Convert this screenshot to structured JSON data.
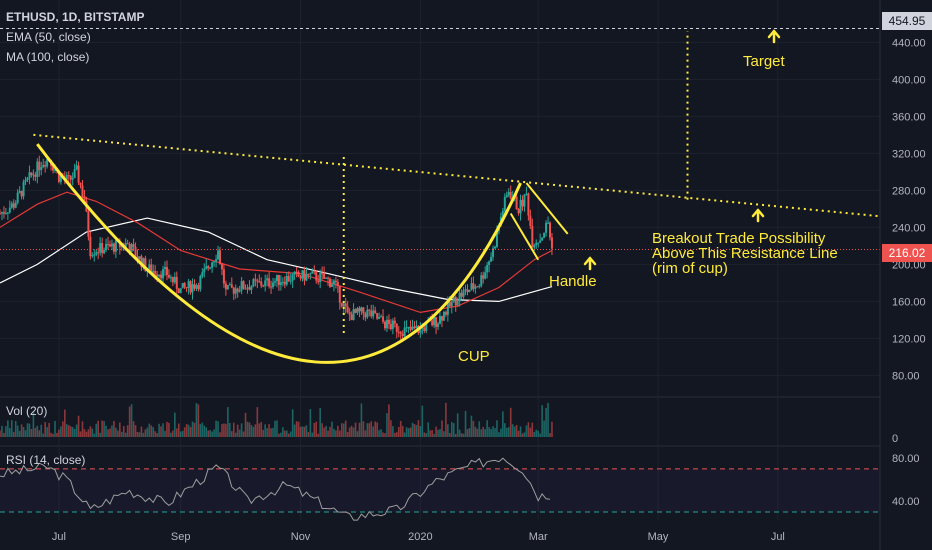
{
  "header": {
    "symbol_line": "ETHUSD, 1D, BITSTAMP",
    "ema_label": "EMA (50, close)",
    "ma_label": "MA (100, close)"
  },
  "volume_pane": {
    "label": "Vol (20)",
    "tick": "0"
  },
  "rsi_pane": {
    "label": "RSI (14, close)",
    "ticks": [
      "80.00",
      "40.00"
    ],
    "upper_band": 70,
    "lower_band": 30
  },
  "price_tags": {
    "top_level": "454.95",
    "last_price": "216.02"
  },
  "annotations": {
    "target": "Target",
    "breakout_line1": "Breakout Trade Possibility",
    "breakout_line2": "Above This Resistance Line",
    "breakout_line3": "(rim of cup)",
    "handle": "Handle",
    "cup": "CUP"
  },
  "colors": {
    "background": "#131722",
    "up_candle": "#26a69a",
    "down_candle": "#ef5350",
    "ema": "#e53935",
    "ma": "#ffffff",
    "annotation": "#ffeb3b",
    "price_line": "#ef5350"
  },
  "chart_data": {
    "type": "candlestick",
    "x_ticks": [
      "Jul",
      "Sep",
      "Nov",
      "2020",
      "Mar",
      "May",
      "Jul"
    ],
    "y_ticks": [
      "440.00",
      "400.00",
      "360.00",
      "320.00",
      "280.00",
      "240.00",
      "200.00",
      "160.00",
      "120.00",
      "80.00"
    ],
    "ylim": [
      62,
      462
    ],
    "last_price": 216.02,
    "target_level": 454.95,
    "price_path": [
      [
        "2019-06-01",
        255
      ],
      [
        "2019-06-08",
        265
      ],
      [
        "2019-06-15",
        290
      ],
      [
        "2019-06-22",
        310
      ],
      [
        "2019-06-26",
        315
      ],
      [
        "2019-07-01",
        295
      ],
      [
        "2019-07-06",
        290
      ],
      [
        "2019-07-10",
        300
      ],
      [
        "2019-07-14",
        270
      ],
      [
        "2019-07-17",
        215
      ],
      [
        "2019-07-25",
        218
      ],
      [
        "2019-08-05",
        222
      ],
      [
        "2019-08-15",
        195
      ],
      [
        "2019-08-25",
        190
      ],
      [
        "2019-09-01",
        172
      ],
      [
        "2019-09-10",
        180
      ],
      [
        "2019-09-20",
        215
      ],
      [
        "2019-09-24",
        170
      ],
      [
        "2019-10-01",
        176
      ],
      [
        "2019-10-15",
        180
      ],
      [
        "2019-10-25",
        185
      ],
      [
        "2019-11-05",
        188
      ],
      [
        "2019-11-12",
        185
      ],
      [
        "2019-11-18",
        180
      ],
      [
        "2019-11-25",
        145
      ],
      [
        "2019-12-05",
        148
      ],
      [
        "2019-12-15",
        135
      ],
      [
        "2019-12-25",
        128
      ],
      [
        "2020-01-01",
        130
      ],
      [
        "2020-01-10",
        140
      ],
      [
        "2020-01-20",
        165
      ],
      [
        "2020-01-31",
        180
      ],
      [
        "2020-02-07",
        215
      ],
      [
        "2020-02-12",
        260
      ],
      [
        "2020-02-15",
        280
      ],
      [
        "2020-02-20",
        260
      ],
      [
        "2020-02-24",
        275
      ],
      [
        "2020-02-27",
        225
      ],
      [
        "2020-03-02",
        228
      ],
      [
        "2020-03-06",
        245
      ],
      [
        "2020-03-08",
        216
      ]
    ],
    "ema_path": [
      [
        "2019-06-01",
        240
      ],
      [
        "2019-06-20",
        265
      ],
      [
        "2019-07-05",
        278
      ],
      [
        "2019-07-20",
        268
      ],
      [
        "2019-08-10",
        245
      ],
      [
        "2019-09-01",
        215
      ],
      [
        "2019-10-01",
        195
      ],
      [
        "2019-11-01",
        190
      ],
      [
        "2019-12-01",
        170
      ],
      [
        "2020-01-01",
        148
      ],
      [
        "2020-01-20",
        155
      ],
      [
        "2020-02-10",
        175
      ],
      [
        "2020-02-28",
        205
      ],
      [
        "2020-03-08",
        215
      ]
    ],
    "ma_path": [
      [
        "2019-06-01",
        180
      ],
      [
        "2019-06-20",
        200
      ],
      [
        "2019-07-15",
        235
      ],
      [
        "2019-08-15",
        250
      ],
      [
        "2019-09-15",
        235
      ],
      [
        "2019-10-15",
        205
      ],
      [
        "2019-11-15",
        190
      ],
      [
        "2019-12-15",
        175
      ],
      [
        "2020-01-15",
        162
      ],
      [
        "2020-02-10",
        160
      ],
      [
        "2020-03-08",
        176
      ]
    ],
    "rsi_path": [
      [
        "2019-06-01",
        65
      ],
      [
        "2019-06-25",
        72
      ],
      [
        "2019-07-05",
        60
      ],
      [
        "2019-07-17",
        32
      ],
      [
        "2019-08-05",
        50
      ],
      [
        "2019-08-25",
        38
      ],
      [
        "2019-09-20",
        72
      ],
      [
        "2019-10-05",
        40
      ],
      [
        "2019-10-25",
        55
      ],
      [
        "2019-11-25",
        25
      ],
      [
        "2019-12-20",
        32
      ],
      [
        "2020-01-10",
        60
      ],
      [
        "2020-01-25",
        72
      ],
      [
        "2020-02-12",
        82
      ],
      [
        "2020-02-22",
        70
      ],
      [
        "2020-03-01",
        45
      ],
      [
        "2020-03-08",
        47
      ]
    ]
  }
}
